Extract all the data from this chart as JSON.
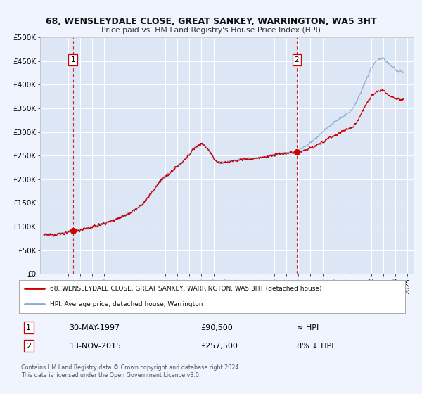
{
  "title": "68, WENSLEYDALE CLOSE, GREAT SANKEY, WARRINGTON, WA5 3HT",
  "subtitle": "Price paid vs. HM Land Registry's House Price Index (HPI)",
  "ylim": [
    0,
    500000
  ],
  "xlim_start": 1994.7,
  "xlim_end": 2025.5,
  "yticks": [
    0,
    50000,
    100000,
    150000,
    200000,
    250000,
    300000,
    350000,
    400000,
    450000,
    500000
  ],
  "ytick_labels": [
    "£0",
    "£50K",
    "£100K",
    "£150K",
    "£200K",
    "£250K",
    "£300K",
    "£350K",
    "£400K",
    "£450K",
    "£500K"
  ],
  "xtick_years": [
    1995,
    1996,
    1997,
    1998,
    1999,
    2000,
    2001,
    2002,
    2003,
    2004,
    2005,
    2006,
    2007,
    2008,
    2009,
    2010,
    2011,
    2012,
    2013,
    2014,
    2015,
    2016,
    2017,
    2018,
    2019,
    2020,
    2021,
    2022,
    2023,
    2024,
    2025
  ],
  "background_color": "#f0f4ff",
  "plot_bg_color": "#dde6f5",
  "grid_color": "#ffffff",
  "red_line_color": "#cc0000",
  "blue_line_color": "#88aad4",
  "dashed_vline_color": "#cc0000",
  "marker_color": "#cc0000",
  "sale1_x": 1997.41,
  "sale1_y": 90500,
  "sale1_label": "1",
  "sale2_x": 2015.87,
  "sale2_y": 257500,
  "sale2_label": "2",
  "legend_line1": "68, WENSLEYDALE CLOSE, GREAT SANKEY, WARRINGTON, WA5 3HT (detached house)",
  "legend_line2": "HPI: Average price, detached house, Warrington",
  "table_row1_num": "1",
  "table_row1_date": "30-MAY-1997",
  "table_row1_price": "£90,500",
  "table_row1_hpi": "≈ HPI",
  "table_row2_num": "2",
  "table_row2_date": "13-NOV-2015",
  "table_row2_price": "£257,500",
  "table_row2_hpi": "8% ↓ HPI",
  "footer1": "Contains HM Land Registry data © Crown copyright and database right 2024.",
  "footer2": "This data is licensed under the Open Government Licence v3.0."
}
